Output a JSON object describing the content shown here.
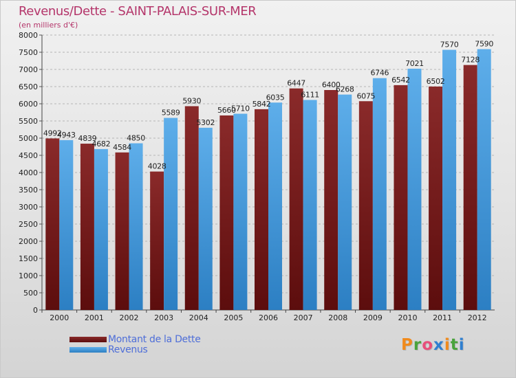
{
  "title": "Revenus/Dette - SAINT-PALAIS-SUR-MER",
  "subtitle": "(en milliers d'€)",
  "colors": {
    "title": "#b4356a",
    "dette_top": "#8a2a2a",
    "dette_bottom": "#5c0d0d",
    "revenus_top": "#5eaeea",
    "revenus_bottom": "#2c7fc3",
    "legend_text": "#4e6ed8"
  },
  "logo": {
    "letters": [
      "P",
      "r",
      "o",
      "x",
      "i",
      "t",
      "i"
    ],
    "colors": [
      "#f08a1c",
      "#4aa33c",
      "#e84f7a",
      "#2f7fd0",
      "#f08a1c",
      "#4aa33c",
      "#2f7fd0"
    ]
  },
  "chart_data": {
    "type": "bar",
    "categories": [
      "2000",
      "2001",
      "2002",
      "2003",
      "2004",
      "2005",
      "2006",
      "2007",
      "2008",
      "2009",
      "2010",
      "2011",
      "2012"
    ],
    "series": [
      {
        "name": "Montant de la Dette",
        "values": [
          4992,
          4839,
          4584,
          4028,
          5930,
          5660,
          5842,
          6447,
          6400,
          6075,
          6542,
          6502,
          7128
        ],
        "labels": [
          "4992",
          "4839",
          "4584",
          "4028",
          "5930",
          "5660",
          "5842",
          "6447",
          "6400",
          "6075",
          "6542",
          "6502",
          "7128"
        ]
      },
      {
        "name": "Revenus",
        "values": [
          4943,
          4682,
          4850,
          5589,
          5302,
          5710,
          6035,
          6111,
          6268,
          6746,
          7021,
          7570,
          7590
        ],
        "labels": [
          "4943",
          "4682",
          "4850",
          "5589",
          "5302",
          "5710",
          "6035",
          "6111",
          "6268",
          "6746",
          "7021",
          "7570",
          "7590"
        ]
      }
    ],
    "ylim": [
      0,
      8000
    ],
    "yticks": [
      "0",
      "500",
      "1000",
      "1500",
      "2000",
      "2500",
      "3000",
      "3500",
      "4000",
      "4500",
      "5000",
      "5500",
      "6000",
      "6500",
      "7000",
      "7500",
      "8000"
    ],
    "grid": true,
    "legend": "bottom-left"
  }
}
